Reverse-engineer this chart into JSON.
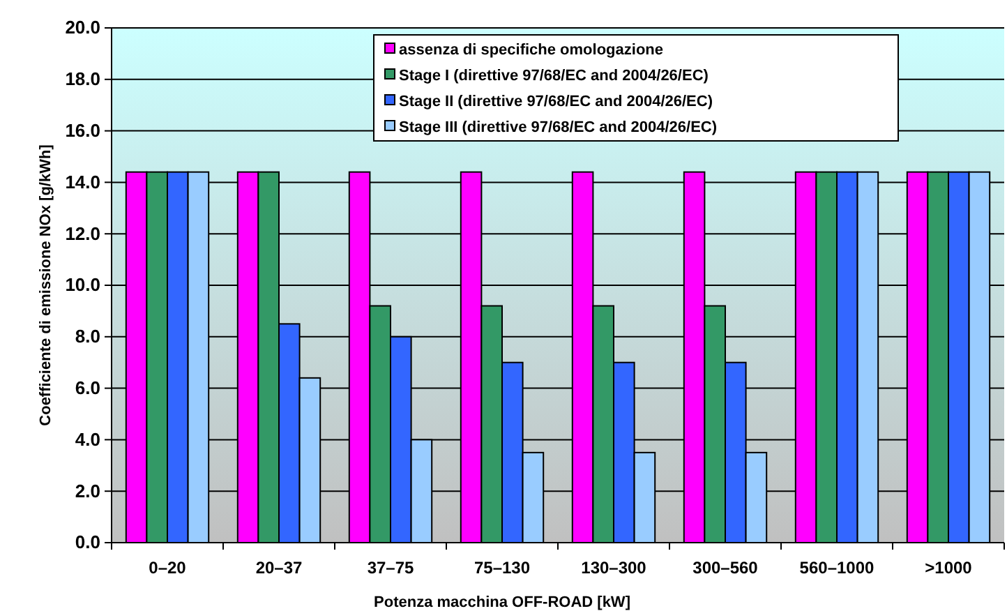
{
  "chart_data": {
    "type": "bar",
    "xlabel": "Potenza macchina OFF-ROAD [kW]",
    "ylabel": "Coefficiente di emissione NOx [g/kWh]",
    "categories": [
      "0–20",
      "20–37",
      "37–75",
      "75–130",
      "130–300",
      "300–560",
      "560–1000",
      ">1000"
    ],
    "series": [
      {
        "name": "assenza di specifiche omologazione",
        "color": "#ff00ff",
        "values": [
          14.4,
          14.4,
          14.4,
          14.4,
          14.4,
          14.4,
          14.4,
          14.4
        ]
      },
      {
        "name": "Stage I (direttive 97/68/EC and 2004/26/EC)",
        "color": "#339966",
        "values": [
          14.4,
          14.4,
          9.2,
          9.2,
          9.2,
          9.2,
          14.4,
          14.4
        ]
      },
      {
        "name": "Stage II (direttive 97/68/EC and 2004/26/EC)",
        "color": "#3366ff",
        "values": [
          14.4,
          8.5,
          8.0,
          7.0,
          7.0,
          7.0,
          14.4,
          14.4
        ]
      },
      {
        "name": "Stage III (direttive 97/68/EC and 2004/26/EC)",
        "color": "#99ccff",
        "values": [
          14.4,
          6.4,
          4.0,
          3.5,
          3.5,
          3.5,
          14.4,
          14.4
        ]
      }
    ],
    "ylim": [
      0,
      20
    ],
    "yticks": [
      {
        "value": 0,
        "label": "0.0"
      },
      {
        "value": 2,
        "label": "2.0"
      },
      {
        "value": 4,
        "label": "4.0"
      },
      {
        "value": 6,
        "label": "6.0"
      },
      {
        "value": 8,
        "label": "8.0"
      },
      {
        "value": 10,
        "label": "10.0"
      },
      {
        "value": 12,
        "label": "12.0"
      },
      {
        "value": 14,
        "label": "14.0"
      },
      {
        "value": 16,
        "label": "16.0"
      },
      {
        "value": 18,
        "label": "18.0"
      },
      {
        "value": 20,
        "label": "20.0"
      }
    ],
    "grid": "y",
    "legend": "top right"
  }
}
